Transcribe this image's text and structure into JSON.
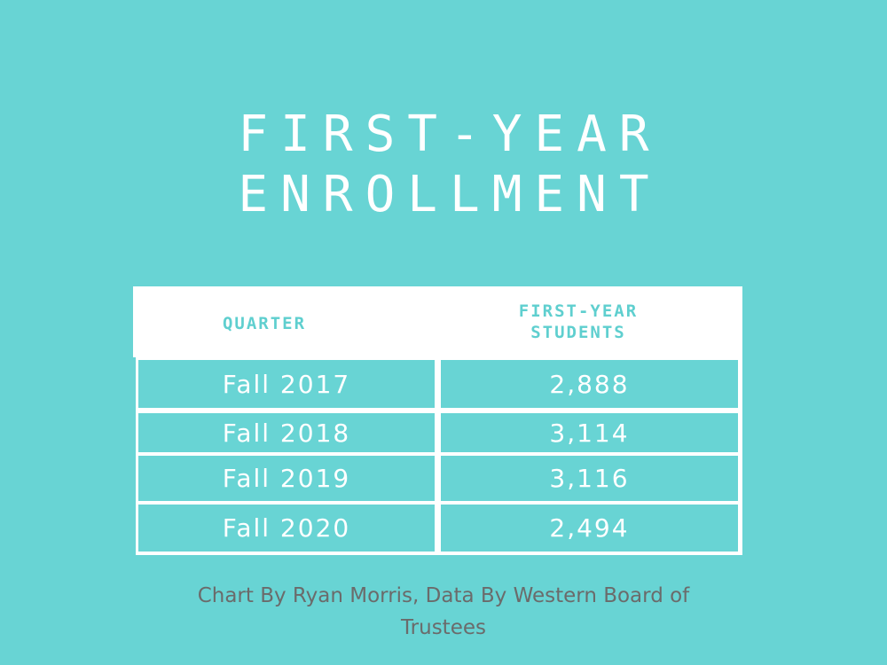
{
  "title_lines": [
    "FIRST-YEAR",
    "ENROLLMENT"
  ],
  "credit": "Chart By Ryan Morris, Data By Western Board of Trustees",
  "colors": {
    "background": "#68d4d4",
    "table_border": "#ffffff",
    "header_text": "#5fcfcf",
    "credit_text": "#6b6b6b"
  },
  "chart_data": {
    "type": "table",
    "title": "FIRST-YEAR ENROLLMENT",
    "columns": [
      "QUARTER",
      "FIRST-YEAR STUDENTS"
    ],
    "column_header_lines": [
      [
        "QUARTER"
      ],
      [
        "FIRST-YEAR",
        "STUDENTS"
      ]
    ],
    "rows": [
      [
        "Fall 2017",
        "2,888"
      ],
      [
        "Fall 2018",
        "3,114"
      ],
      [
        "Fall 2019",
        "3,116"
      ],
      [
        "Fall 2020",
        "2,494"
      ]
    ],
    "values": [
      2888,
      3114,
      3116,
      2494
    ]
  }
}
